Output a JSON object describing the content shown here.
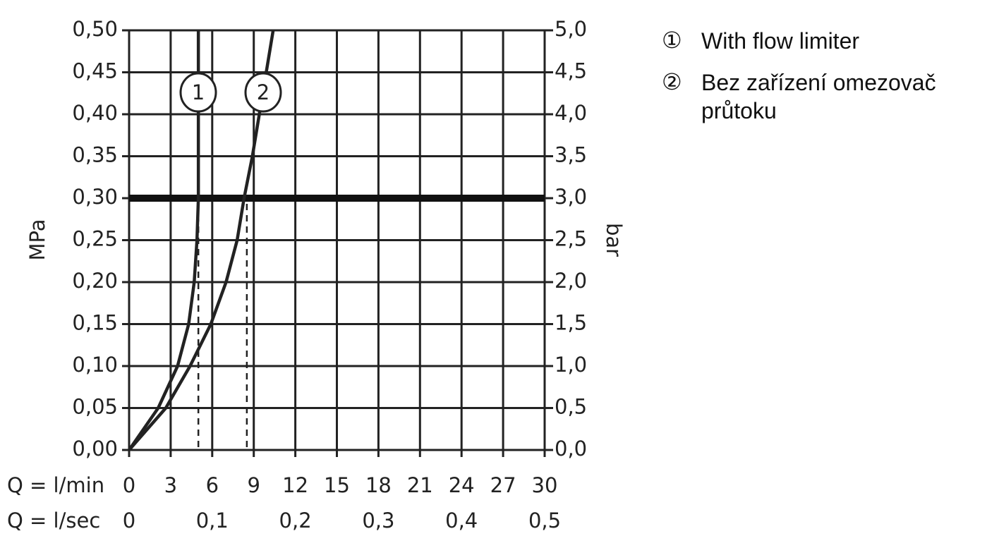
{
  "chart_data": {
    "type": "line",
    "x_label": "Q = l/min",
    "x2_label": "Q = l/sec",
    "y_label": "MPa",
    "y2_label": "bar",
    "xlim": [
      0,
      30
    ],
    "xticks": [
      0,
      3,
      6,
      9,
      12,
      15,
      18,
      21,
      24,
      27,
      30
    ],
    "x2lim": [
      0,
      0.5
    ],
    "x2ticks": [
      0,
      {
        "value": 0.1,
        "label": "0,1"
      },
      {
        "value": 0.2,
        "label": "0,2"
      },
      {
        "value": 0.3,
        "label": "0,3"
      },
      {
        "value": 0.4,
        "label": "0,4"
      },
      {
        "value": 0.5,
        "label": "0,5"
      }
    ],
    "ylim": [
      0,
      0.5
    ],
    "yticks": [
      {
        "value": 0,
        "label": "0,00"
      },
      {
        "value": 0.05,
        "label": "0,05"
      },
      {
        "value": 0.1,
        "label": "0,10"
      },
      {
        "value": 0.15,
        "label": "0,15"
      },
      {
        "value": 0.2,
        "label": "0,20"
      },
      {
        "value": 0.25,
        "label": "0,25"
      },
      {
        "value": 0.3,
        "label": "0,30"
      },
      {
        "value": 0.35,
        "label": "0,35"
      },
      {
        "value": 0.4,
        "label": "0,40"
      },
      {
        "value": 0.45,
        "label": "0,45"
      },
      {
        "value": 0.5,
        "label": "0,50"
      }
    ],
    "y2lim": [
      0,
      5
    ],
    "y2ticks": [
      {
        "value": 0,
        "label": "0,0"
      },
      {
        "value": 0.5,
        "label": "0,5"
      },
      {
        "value": 1,
        "label": "1,0"
      },
      {
        "value": 1.5,
        "label": "1,5"
      },
      {
        "value": 2,
        "label": "2,0"
      },
      {
        "value": 2.5,
        "label": "2,5"
      },
      {
        "value": 3,
        "label": "3,0"
      },
      {
        "value": 3.5,
        "label": "3,5"
      },
      {
        "value": 4,
        "label": "4,0"
      },
      {
        "value": 4.5,
        "label": "4,5"
      },
      {
        "value": 5,
        "label": "5,0"
      }
    ],
    "grid": true,
    "hline": 0.3,
    "vlines": [
      5,
      8.5
    ],
    "series": [
      {
        "name": "With flow limiter",
        "label": "1",
        "legend_marker": "①",
        "color": "#222222",
        "x": [
          0,
          2.1,
          3.5,
          4.3,
          4.7,
          4.9,
          5.0,
          5.0,
          5.0,
          5.0,
          5.0
        ],
        "values": [
          0,
          0.05,
          0.1,
          0.15,
          0.2,
          0.25,
          0.3,
          0.35,
          0.4,
          0.45,
          0.5
        ]
      },
      {
        "name": "Bez zařízení omezovač průtoku",
        "label": "2",
        "legend_marker": "②",
        "color": "#222222",
        "x": [
          0,
          2.65,
          4.4,
          5.9,
          7.0,
          7.8,
          8.3,
          8.9,
          9.4,
          9.9,
          10.4
        ],
        "values": [
          0,
          0.05,
          0.1,
          0.15,
          0.2,
          0.25,
          0.3,
          0.35,
          0.4,
          0.45,
          0.5
        ]
      }
    ]
  }
}
